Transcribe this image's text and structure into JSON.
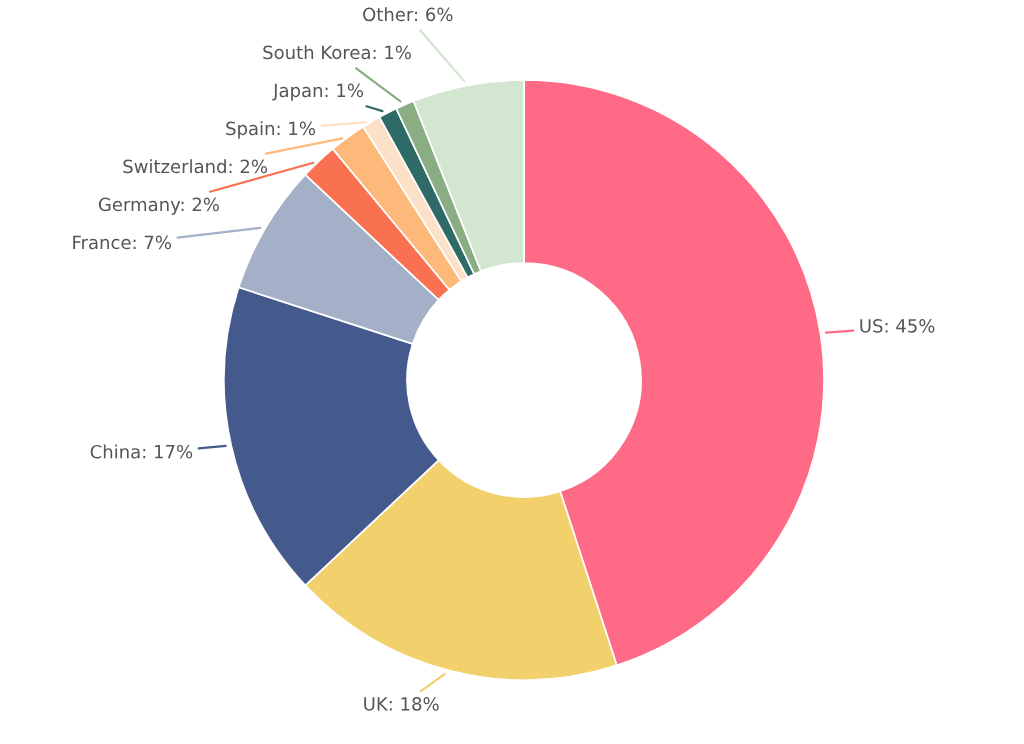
{
  "chart_data": {
    "type": "donut",
    "categories": [
      "US",
      "UK",
      "China",
      "France",
      "Germany",
      "Switzerland",
      "Spain",
      "Japan",
      "South Korea",
      "Other"
    ],
    "values": [
      45,
      18,
      17,
      7,
      2,
      2,
      1,
      1,
      1,
      6
    ],
    "value_labels": [
      "45%",
      "18%",
      "17%",
      "7%",
      "2%",
      "2%",
      "1%",
      "1%",
      "1%",
      "6%"
    ],
    "colors": [
      "#ff6b86",
      "#f2d06b",
      "#455a8c",
      "#a3b0c8",
      "#f97150",
      "#fdb97a",
      "#fde0c8",
      "#2f6b66",
      "#8aad84",
      "#d3e6cf"
    ]
  }
}
